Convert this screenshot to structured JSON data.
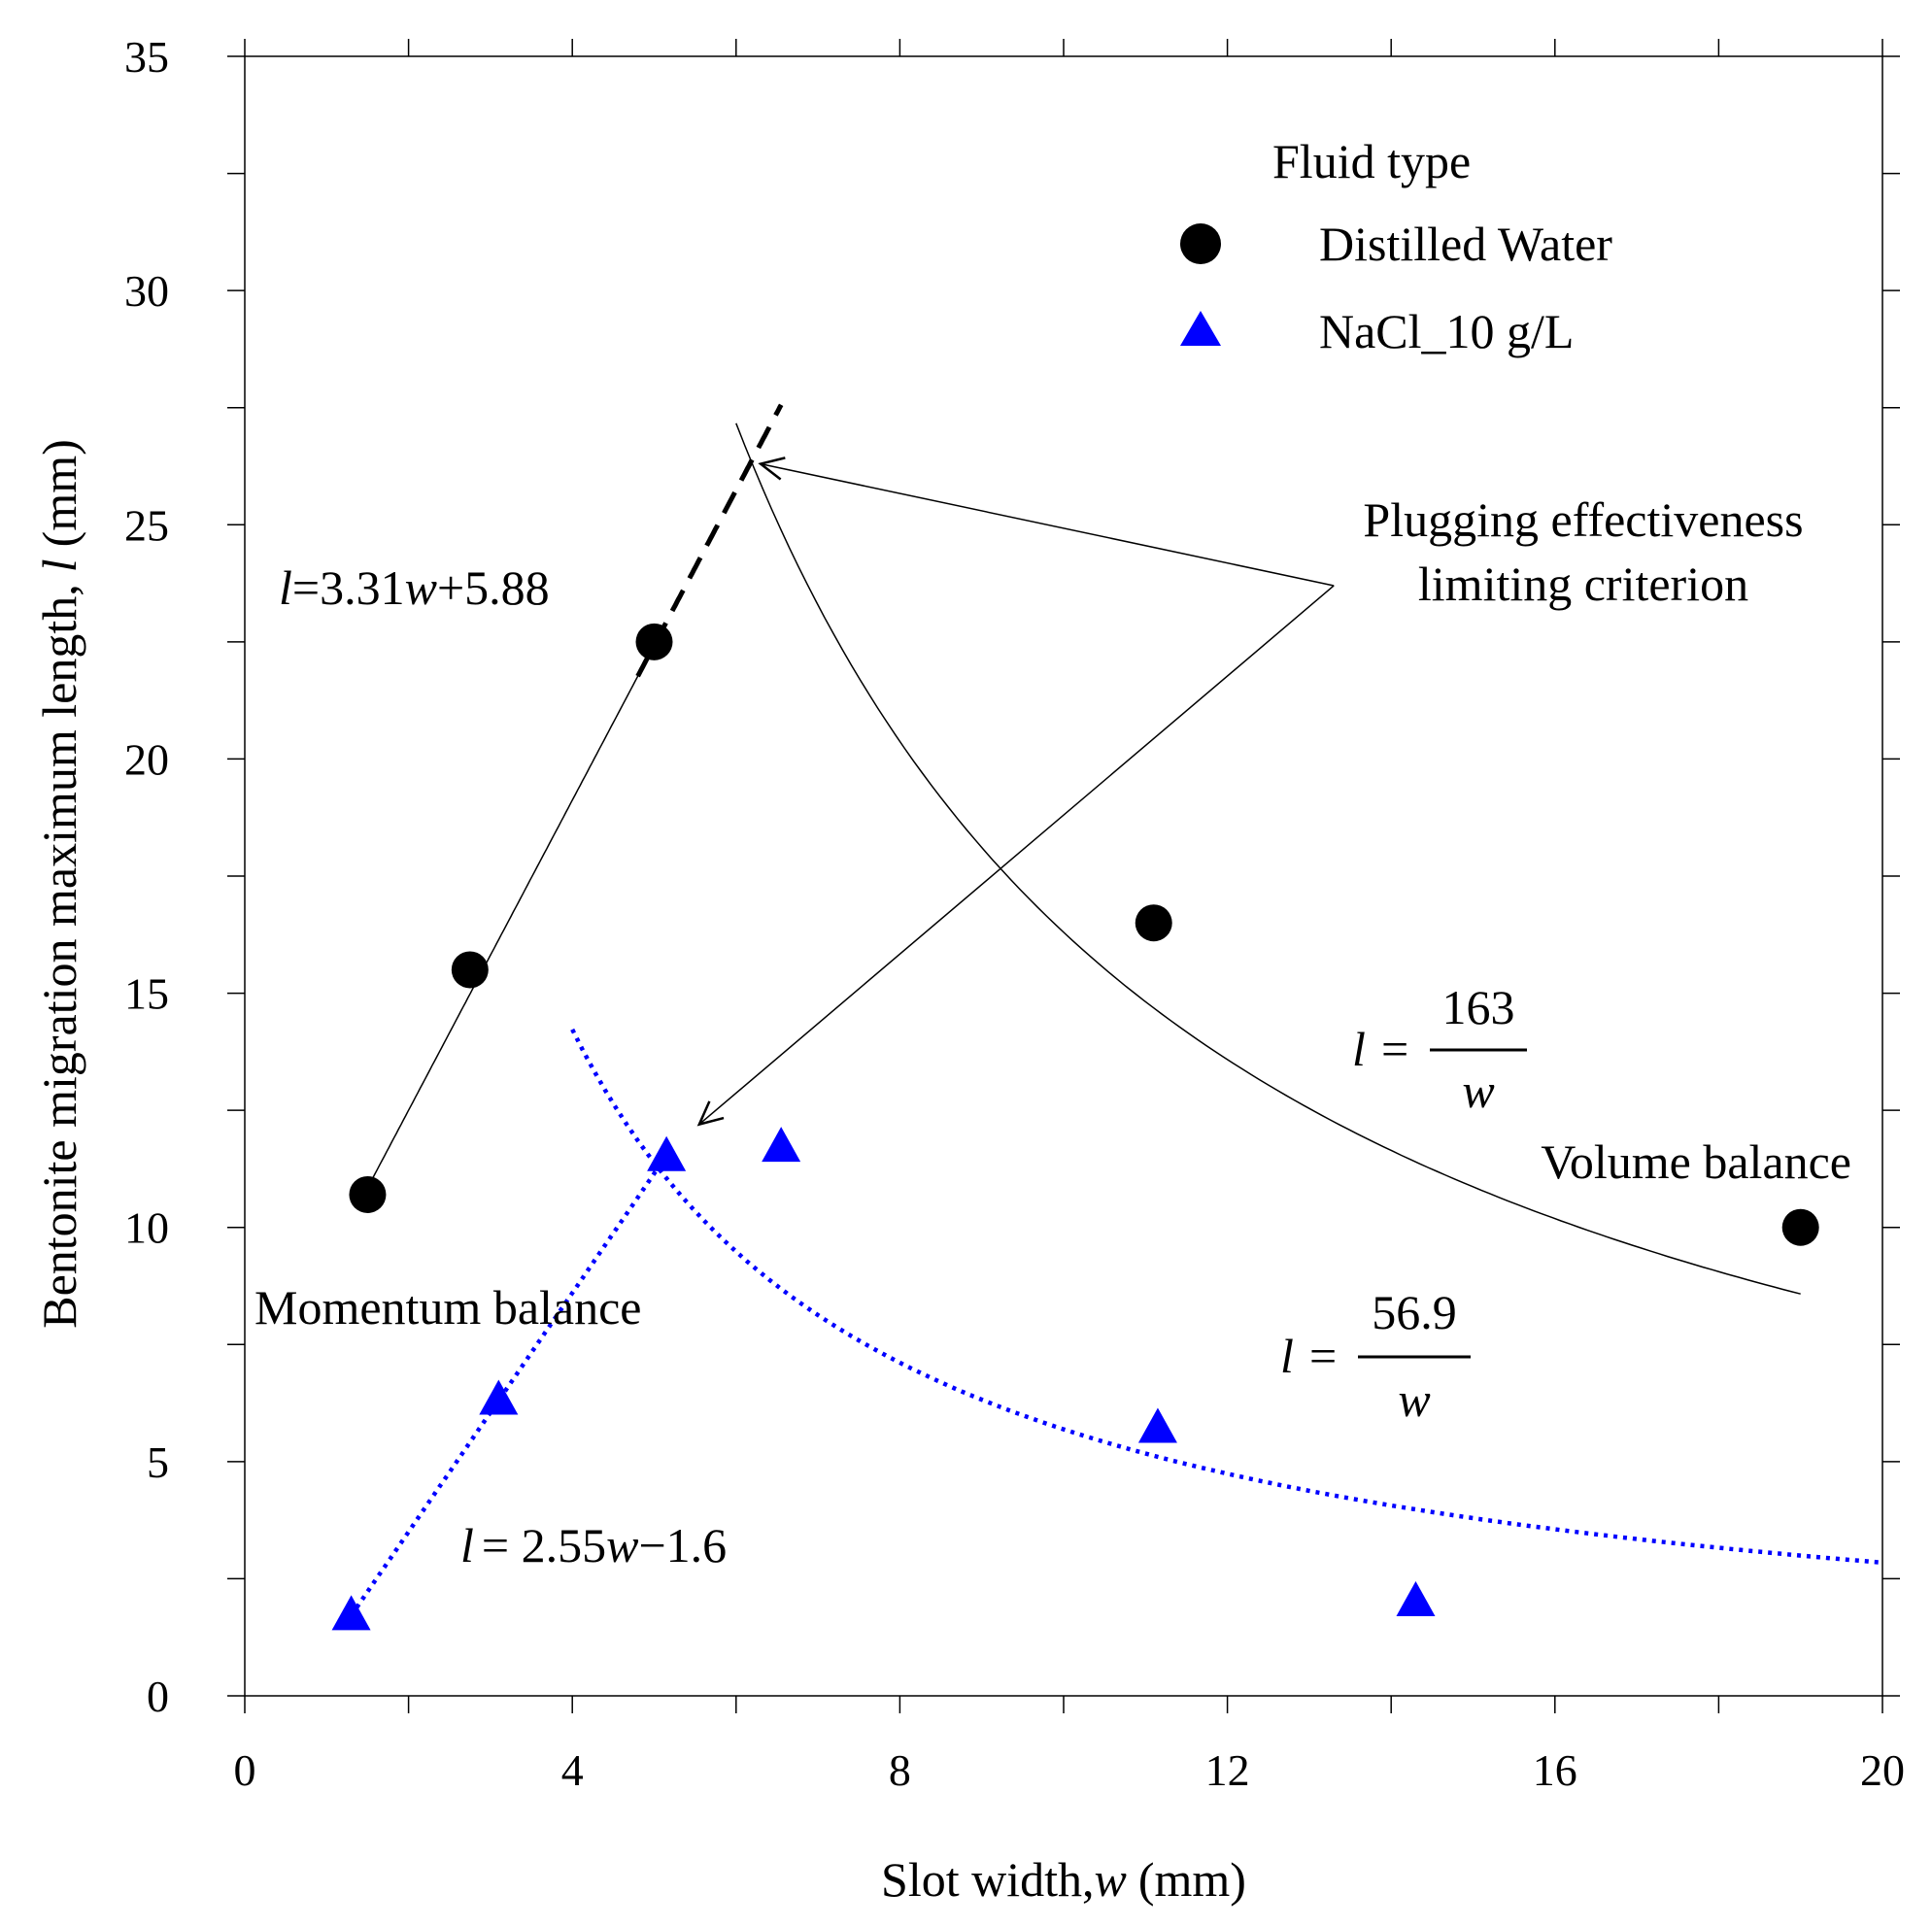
{
  "chart_data": {
    "type": "scatter",
    "xlabel": "Slot width,",
    "xlabel_var": "w",
    "xlabel_unit": "(mm)",
    "ylabel": "Bentonite migration maximum length,",
    "ylabel_var": "l",
    "ylabel_unit": "(mm)",
    "xlim": [
      0,
      20
    ],
    "ylim": [
      0,
      35
    ],
    "x_ticks": [
      "0",
      "4",
      "8",
      "12",
      "16",
      "20"
    ],
    "x_tick_values": [
      0,
      4,
      8,
      12,
      16,
      20
    ],
    "y_ticks": [
      "0",
      "5",
      "10",
      "15",
      "20",
      "25",
      "30",
      "35"
    ],
    "y_tick_values": [
      0,
      5,
      10,
      15,
      20,
      25,
      30,
      35
    ],
    "legend": {
      "title": "Fluid type",
      "placement": "top-right",
      "entries": [
        "Distilled Water",
        "NaCl_10 g/L"
      ]
    },
    "series": [
      {
        "name": "Distilled Water",
        "marker": "circle",
        "color": "#000000",
        "x": [
          1.5,
          2.75,
          5.0,
          11.1,
          19.0
        ],
        "y": [
          10.7,
          15.5,
          22.5,
          16.5,
          10.0
        ]
      },
      {
        "name": "NaCl_10 g/L",
        "marker": "triangle",
        "color": "#0000ff",
        "x": [
          1.3,
          3.1,
          5.15,
          6.55,
          11.15,
          14.3
        ],
        "y": [
          1.7,
          6.3,
          11.5,
          11.7,
          5.7,
          2.0
        ]
      }
    ],
    "fit_lines": [
      {
        "name": "distilled-linear-fit",
        "kind": "linear",
        "slope": 3.31,
        "intercept": 5.88,
        "x_range": [
          1.5,
          5.0
        ],
        "color": "#000000",
        "style": "solid"
      },
      {
        "name": "distilled-linear-extension",
        "kind": "linear",
        "slope": 3.31,
        "intercept": 5.88,
        "x_range": [
          4.8,
          6.55
        ],
        "color": "#000000",
        "style": "dashed"
      },
      {
        "name": "distilled-volume-curve",
        "kind": "inverse",
        "k": 163,
        "x_range": [
          6.0,
          19.0
        ],
        "color": "#000000",
        "style": "solid"
      },
      {
        "name": "nacl-linear-fit",
        "kind": "linear",
        "slope": 2.55,
        "intercept": -1.6,
        "x_range": [
          1.3,
          5.15
        ],
        "color": "#0000ff",
        "style": "dotted"
      },
      {
        "name": "nacl-momentum-curve",
        "kind": "inverse",
        "k": 56.9,
        "x_range": [
          4.0,
          20.0
        ],
        "color": "#0000ff",
        "style": "dotted"
      }
    ],
    "equations": {
      "distilled_linear": {
        "var": "l",
        "eq": "=3.31",
        "var2": "w",
        "rest": "+5.88"
      },
      "distilled_inverse": {
        "var": "l",
        "eq": "=",
        "numerator": "163",
        "denominator": "w"
      },
      "nacl_inverse": {
        "var": "l",
        "eq": "=",
        "numerator": "56.9",
        "denominator": "w"
      },
      "nacl_linear": {
        "var": "l",
        "eq": "= 2.55",
        "var2": "w",
        "rest": "−1.6"
      }
    },
    "annotations": {
      "plugging_line1": "Plugging effectiveness",
      "plugging_line2": "limiting criterion",
      "volume_balance": "Volume balance",
      "momentum_balance": "Momentum balance"
    },
    "arrows": [
      {
        "name": "arrow-to-distilled-limit",
        "from": [
          13.3,
          23.7
        ],
        "to": [
          6.3,
          26.3
        ]
      },
      {
        "name": "arrow-to-nacl-limit",
        "from": [
          13.3,
          23.7
        ],
        "to": [
          5.55,
          12.2
        ]
      }
    ]
  }
}
